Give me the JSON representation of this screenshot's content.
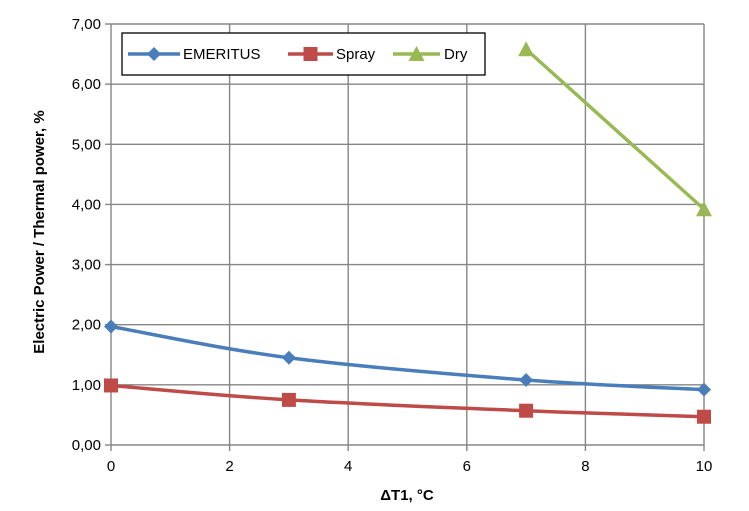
{
  "chart_data": {
    "type": "line",
    "xlabel": "ΔT1, °C",
    "ylabel": "Electric Power / Thermal power, %",
    "xlim": [
      0,
      10
    ],
    "ylim": [
      0,
      7
    ],
    "xticks": [
      0,
      2,
      4,
      6,
      8,
      10
    ],
    "xtick_labels": [
      "0",
      "2",
      "4",
      "6",
      "8",
      "10"
    ],
    "yticks": [
      0,
      1,
      2,
      3,
      4,
      5,
      6,
      7
    ],
    "ytick_labels": [
      "0,00",
      "1,00",
      "2,00",
      "3,00",
      "4,00",
      "5,00",
      "6,00",
      "7,00"
    ],
    "grid": true,
    "legend_position": "top-left",
    "series": [
      {
        "name": "EMERITUS",
        "color": "#4a7ebb",
        "marker": "diamond",
        "smooth": true,
        "x": [
          0,
          3,
          7,
          10
        ],
        "y": [
          1.97,
          1.45,
          1.08,
          0.92
        ]
      },
      {
        "name": "Spray",
        "color": "#be4b48",
        "marker": "square",
        "smooth": true,
        "x": [
          0,
          3,
          7,
          10
        ],
        "y": [
          0.99,
          0.75,
          0.57,
          0.47
        ]
      },
      {
        "name": "Dry",
        "color": "#98b954",
        "marker": "triangle",
        "smooth": false,
        "x": [
          7,
          10
        ],
        "y": [
          6.58,
          3.92
        ]
      }
    ]
  }
}
